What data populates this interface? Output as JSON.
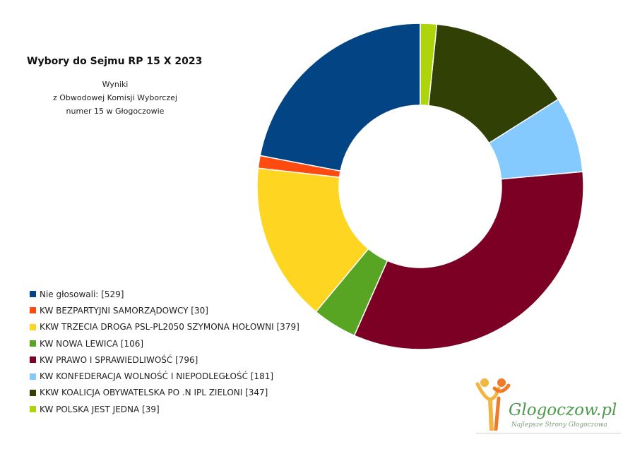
{
  "chart_data": {
    "type": "donut",
    "title": "Wybory do Sejmu RP 15 X 2023",
    "subtitle": [
      "Wyniki",
      "z Obwodowej Komisji Wyborczej",
      "numer 15 w Głogoczowie"
    ],
    "series": [
      {
        "label": "Nie głosowali: [529]",
        "value": 529,
        "color": "#034584"
      },
      {
        "label": "KW BEZPARTYJNI SAMORZĄDOWCY [30]",
        "value": 30,
        "color": "#ff4a10"
      },
      {
        "label": "KKW TRZECIA DROGA PSL-PL2050 SZYMONA HOŁOWNI [379]",
        "value": 379,
        "color": "#fed521"
      },
      {
        "label": "KW NOWA LEWICA [106]",
        "value": 106,
        "color": "#57a523"
      },
      {
        "label": "KW PRAWO I SPRAWIEDLIWOŚĆ [796]",
        "value": 796,
        "color": "#7b0023"
      },
      {
        "label": "KW KONFEDERACJA WOLNOŚĆ I NIEPODLEGŁOŚĆ [181]",
        "value": 181,
        "color": "#84caff"
      },
      {
        "label": "KKW KOALICJA OBYWATELSKA PO .N IPL ZIELONI [347]",
        "value": 347,
        "color": "#314004"
      },
      {
        "label": "KW POLSKA JEST JEDNA [39]",
        "value": 39,
        "color": "#aed40c"
      }
    ],
    "start": "top",
    "direction": "counterclockwise",
    "legend_position": "bottom-left"
  },
  "logo": {
    "name": "Glogoczow.pl",
    "tagline": "Najlepsze Strony Głogoczowa"
  }
}
